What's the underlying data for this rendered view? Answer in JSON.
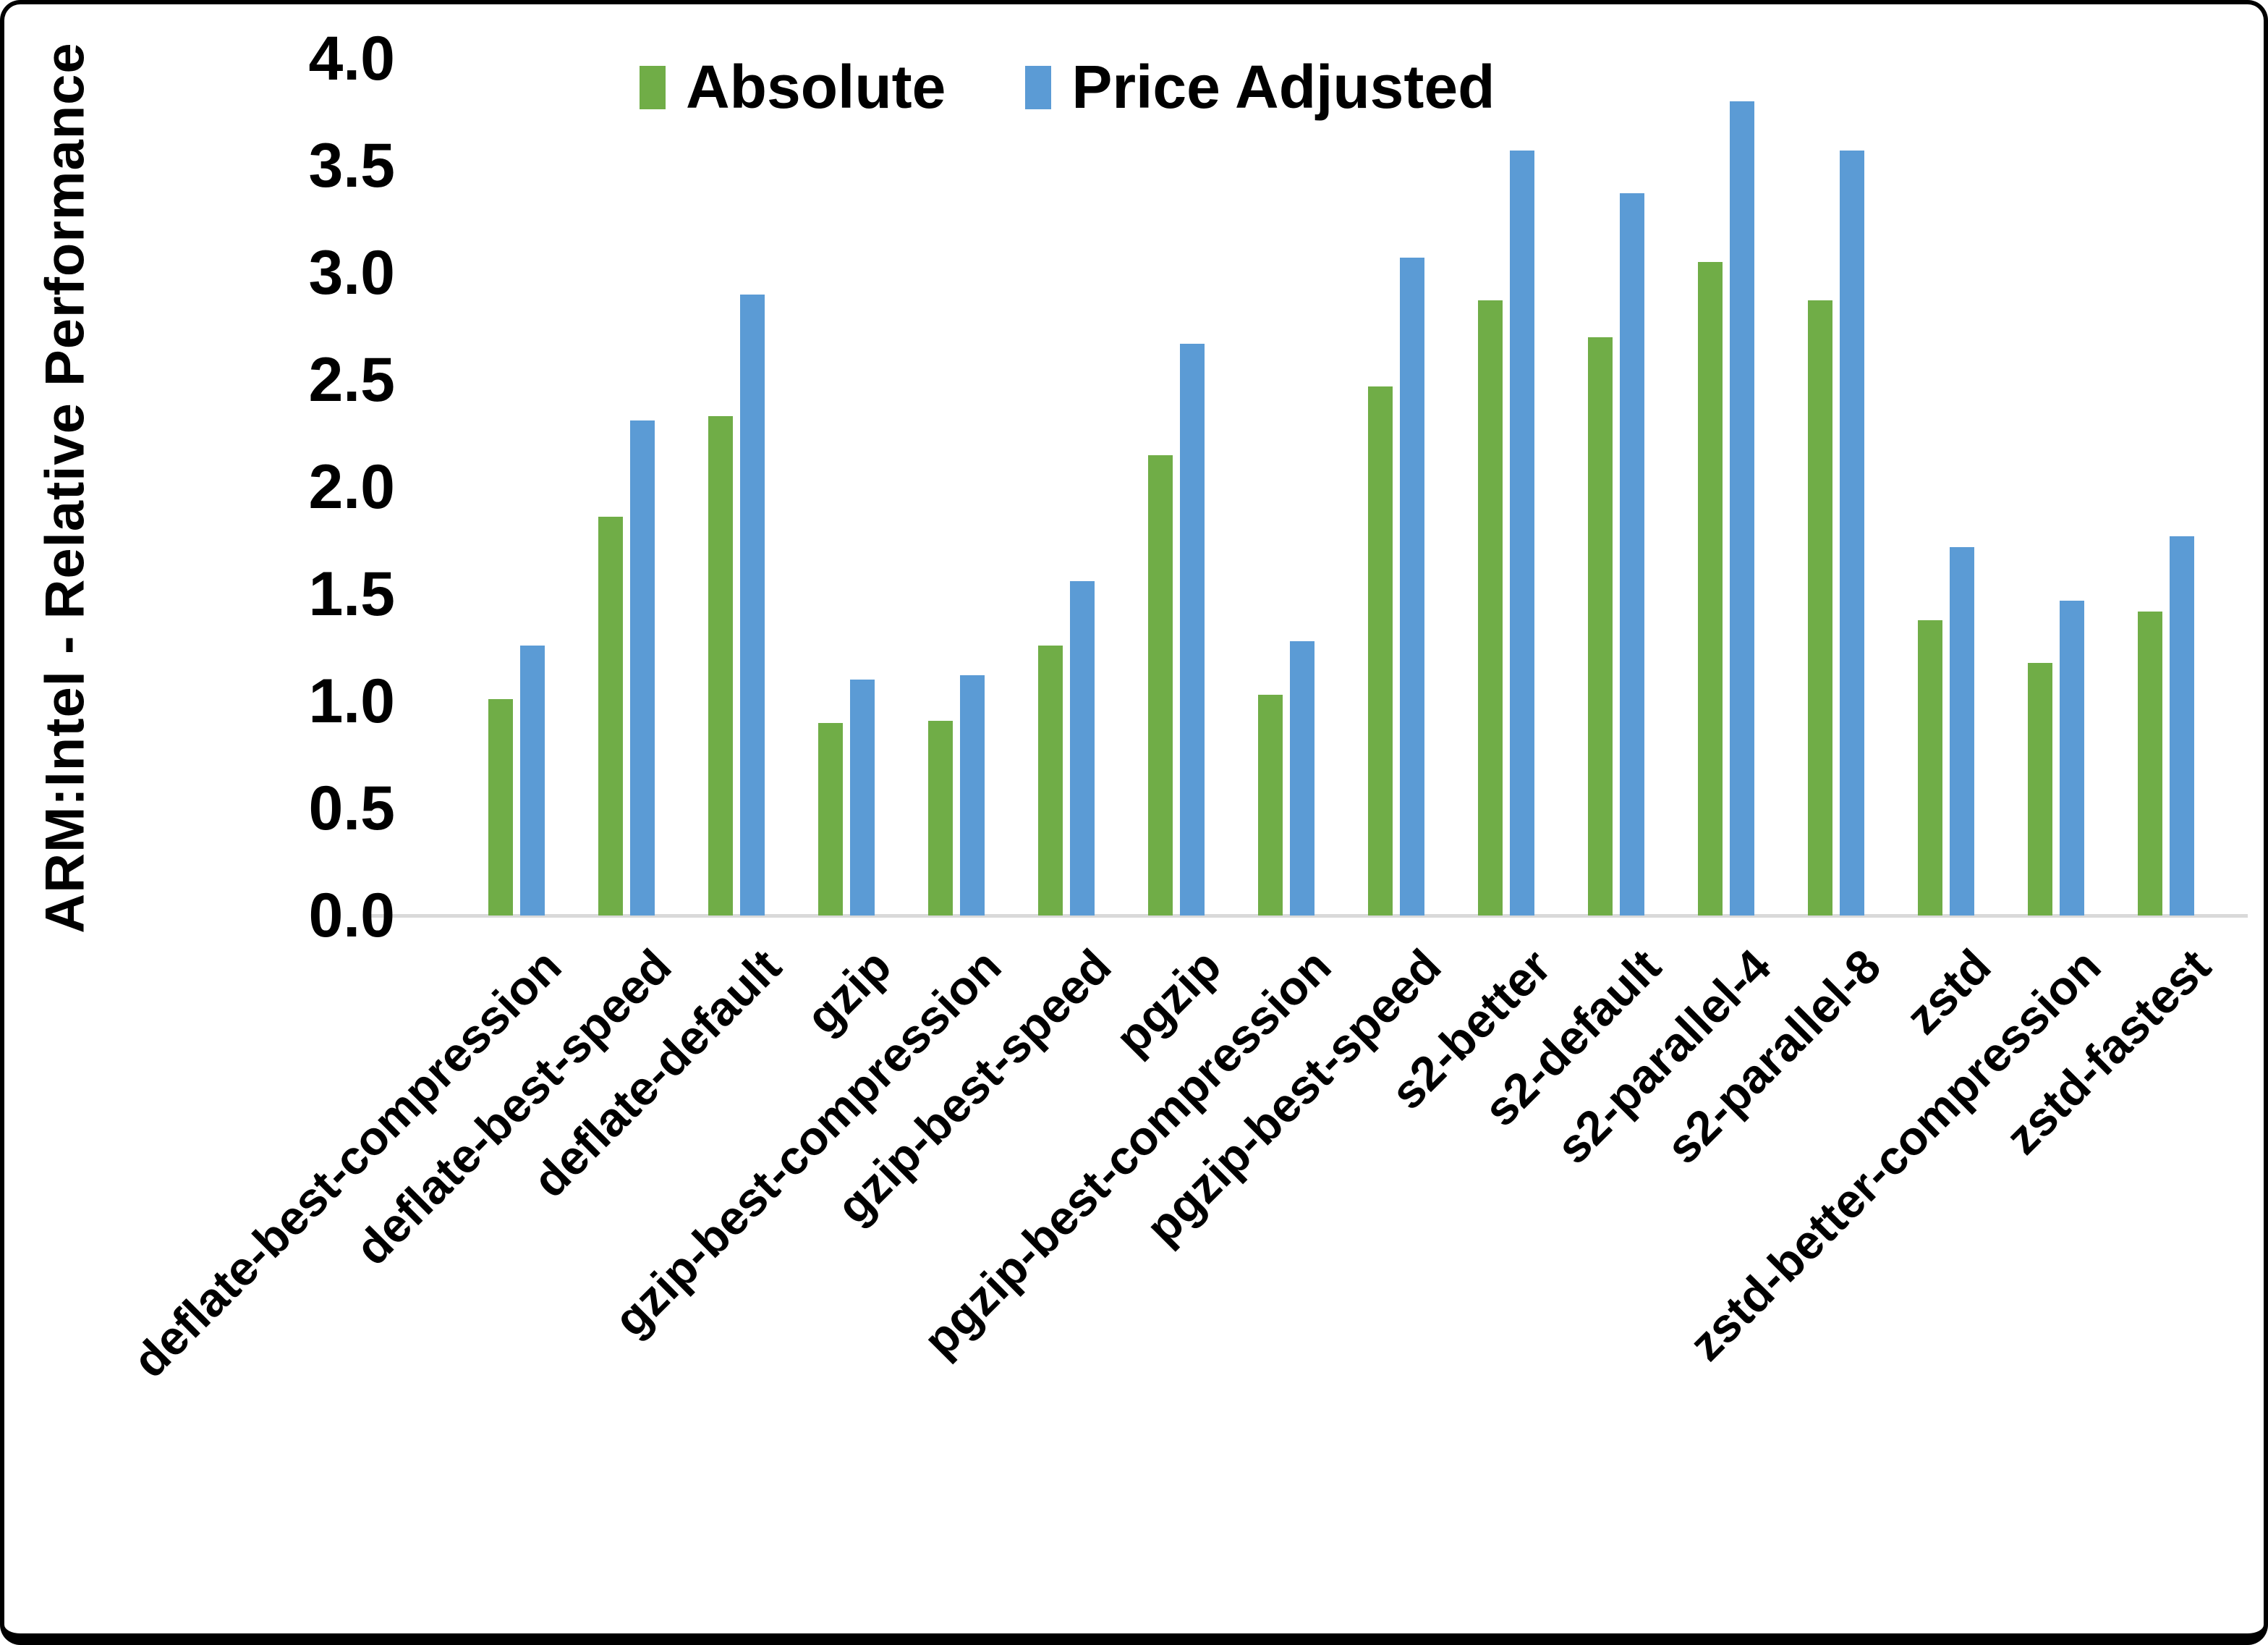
{
  "figure": {
    "background": "#ffffff",
    "border_color": "#000000"
  },
  "y_axis": {
    "title": "ARM:Intel - Relative Performance",
    "min": 0.0,
    "max": 4.0,
    "step": 0.5,
    "tick_labels": [
      "0.0",
      "0.5",
      "1.0",
      "1.5",
      "2.0",
      "2.5",
      "3.0",
      "3.5",
      "4.0"
    ],
    "baseline_color": "#d9d9d9"
  },
  "legend": {
    "position": "top",
    "items": [
      {
        "label": "Absolute",
        "color": "#70ad47"
      },
      {
        "label": "Price Adjusted",
        "color": "#5b9bd5"
      }
    ]
  },
  "chart_data": {
    "type": "bar",
    "title": "",
    "ylabel": "ARM:Intel - Relative Performance",
    "xlabel": "",
    "ylim": [
      0.0,
      4.0
    ],
    "grid": false,
    "legend_position": "top",
    "categories": [
      "deflate-best-compression",
      "deflate-best-speed",
      "deflate-default",
      "gzip",
      "gzip-best-compression",
      "gzip-best-speed",
      "pgzip",
      "pgzip-best-compression",
      "pgzip-best-speed",
      "s2-better",
      "s2-default",
      "s2-parallel-4",
      "s2-parallel-8",
      "zstd",
      "zstd-better-compression",
      "zstd-fastest"
    ],
    "series": [
      {
        "name": "Absolute",
        "color": "#70ad47",
        "values": [
          1.01,
          1.86,
          2.33,
          0.9,
          0.91,
          1.26,
          2.15,
          1.03,
          2.47,
          2.87,
          2.7,
          3.05,
          2.87,
          1.38,
          1.18,
          1.42
        ]
      },
      {
        "name": "Price Adjusted",
        "color": "#5b9bd5",
        "values": [
          1.26,
          2.31,
          2.9,
          1.1,
          1.12,
          1.56,
          2.67,
          1.28,
          3.07,
          3.57,
          3.37,
          3.8,
          3.57,
          1.72,
          1.47,
          1.77
        ]
      }
    ]
  }
}
